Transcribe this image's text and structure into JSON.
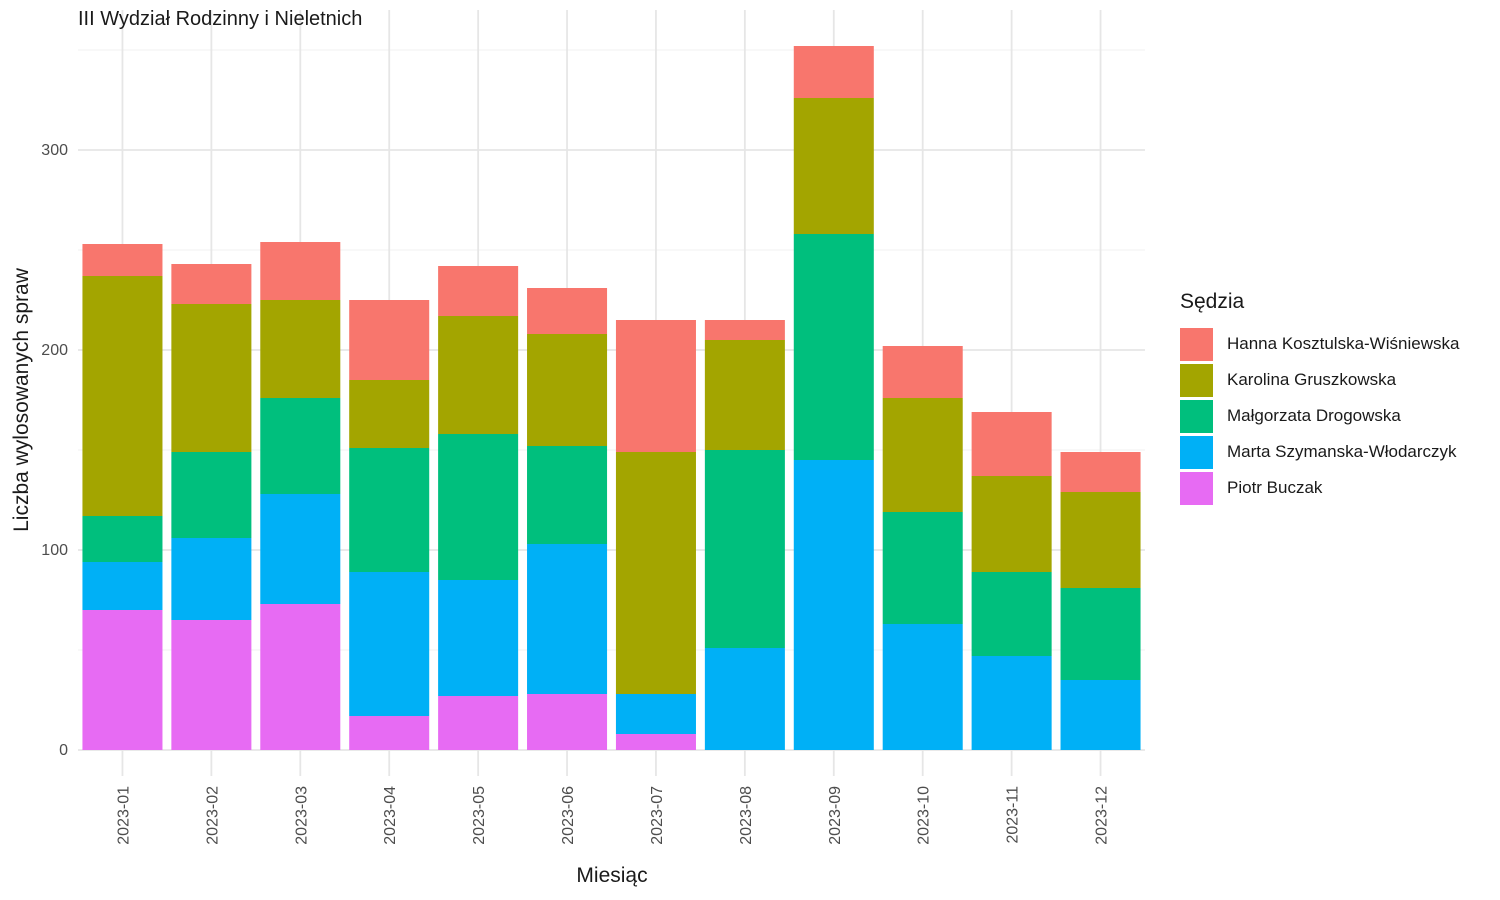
{
  "chart_data": {
    "type": "bar",
    "stacked": true,
    "title": "III Wydział Rodzinny i Nieletnich",
    "xlabel": "Miesiąc",
    "ylabel": "Liczba wylosowanych spraw",
    "ylim": [
      0,
      360
    ],
    "yticks": [
      0,
      100,
      200,
      300
    ],
    "grid": true,
    "legend_title": "Sędzia",
    "legend_position": "right",
    "categories": [
      "2023-01",
      "2023-02",
      "2023-03",
      "2023-04",
      "2023-05",
      "2023-06",
      "2023-07",
      "2023-08",
      "2023-09",
      "2023-10",
      "2023-11",
      "2023-12"
    ],
    "series": [
      {
        "name": "Hanna Kosztulska-Wiśniewska",
        "color": "#F8766D",
        "values": [
          16,
          20,
          29,
          40,
          25,
          23,
          66,
          10,
          26,
          26,
          32,
          20
        ]
      },
      {
        "name": "Karolina Gruszkowska",
        "color": "#A3A500",
        "values": [
          120,
          74,
          49,
          34,
          59,
          56,
          121,
          55,
          68,
          57,
          48,
          48
        ]
      },
      {
        "name": "Małgorzata Drogowska",
        "color": "#00BF7D",
        "values": [
          23,
          43,
          48,
          62,
          73,
          49,
          0,
          99,
          113,
          56,
          42,
          46
        ]
      },
      {
        "name": "Marta Szymanska-Włodarczyk",
        "color": "#00B0F6",
        "values": [
          24,
          41,
          55,
          72,
          58,
          75,
          20,
          51,
          145,
          63,
          47,
          35
        ]
      },
      {
        "name": "Piotr Buczak",
        "color": "#E76BF3",
        "values": [
          70,
          65,
          73,
          17,
          27,
          28,
          8,
          0,
          0,
          0,
          0,
          0
        ]
      }
    ]
  }
}
